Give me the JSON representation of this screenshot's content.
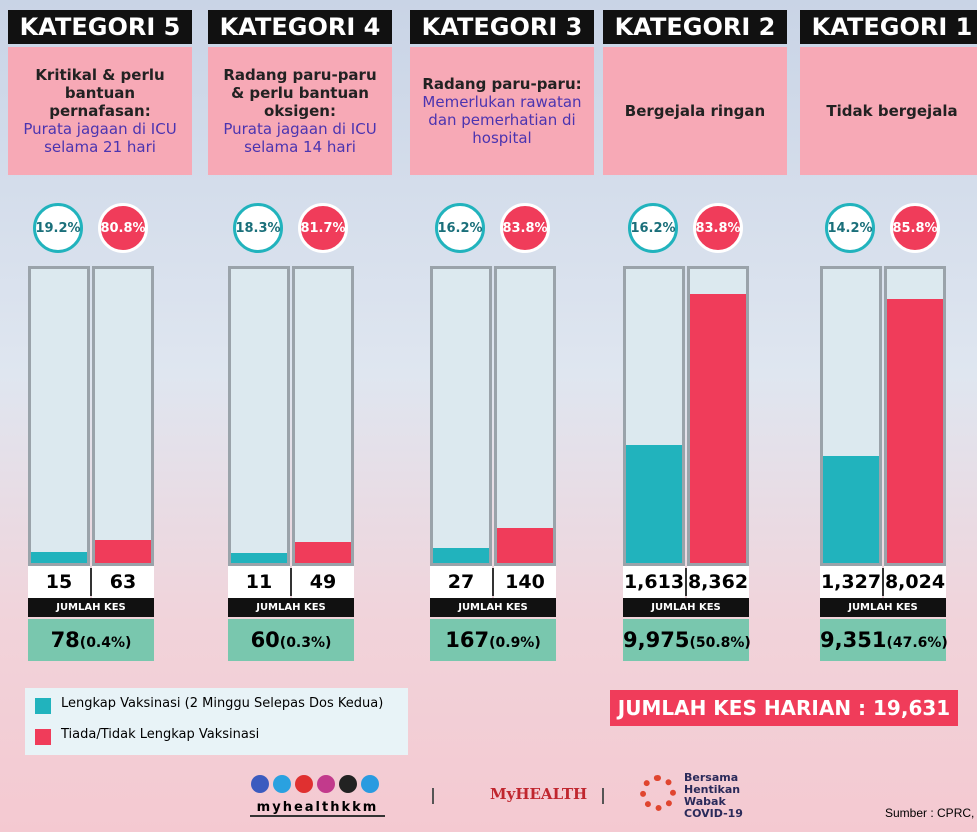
{
  "columns": [
    {
      "title": "KATEGORI 5",
      "desc": "Kritikal & perlu bantuan pernafasan:",
      "note": "Purata jagaan di ICU selama 21 hari",
      "vaccinated_pct": "19.2%",
      "unvaccinated_pct": "80.8%",
      "vaccinated": 15,
      "unvaccinated": 63,
      "total": "78",
      "share": "(0.4%)"
    },
    {
      "title": "KATEGORI 4",
      "desc": "Radang paru-paru & perlu bantuan oksigen:",
      "note": "Purata jagaan di ICU selama 14 hari",
      "vaccinated_pct": "18.3%",
      "unvaccinated_pct": "81.7%",
      "vaccinated": 11,
      "unvaccinated": 49,
      "total": "60",
      "share": "(0.3%)"
    },
    {
      "title": "KATEGORI 3",
      "desc": "Radang paru-paru:",
      "note": "Memerlukan rawatan dan pemerhatian di hospital",
      "vaccinated_pct": "16.2%",
      "unvaccinated_pct": "83.8%",
      "vaccinated": 27,
      "unvaccinated": 140,
      "total": "167",
      "share": "(0.9%)"
    },
    {
      "title": "KATEGORI 2",
      "desc": "Bergejala ringan",
      "vaccinated_pct": "16.2%",
      "unvaccinated_pct": "83.8%",
      "vaccinated": {
        "value": 1613,
        "label": "1,613"
      },
      "unvaccinated": {
        "value": 8362,
        "label": "8,362"
      },
      "total": "9,975",
      "share": "(50.8%)"
    },
    {
      "title": "KATEGORI 1",
      "desc": "Tidak bergejala",
      "vaccinated_pct": "14.2%",
      "unvaccinated_pct": "85.8%",
      "vaccinated": {
        "value": 1327,
        "label": "1,327"
      },
      "unvaccinated": {
        "value": 8024,
        "label": "8,024"
      },
      "total": "9,351",
      "share": "(47.6%)"
    }
  ],
  "total_label": "JUMLAH KES",
  "legend": {
    "vaccinated": "Lengkap Vaksinasi (2 Minggu Selepas Dos Kedua)",
    "unvaccinated": "Tiada/Tidak Lengkap Vaksinasi"
  },
  "daily_total": "JUMLAH KES HARIAN : 19,631",
  "footer": {
    "handle": "myhealthkkm",
    "brand": "MyHEALTH",
    "campaign": "Bersama Hentikan Wabak COVID-19",
    "source": "Sumber : CPRC,"
  }
}
